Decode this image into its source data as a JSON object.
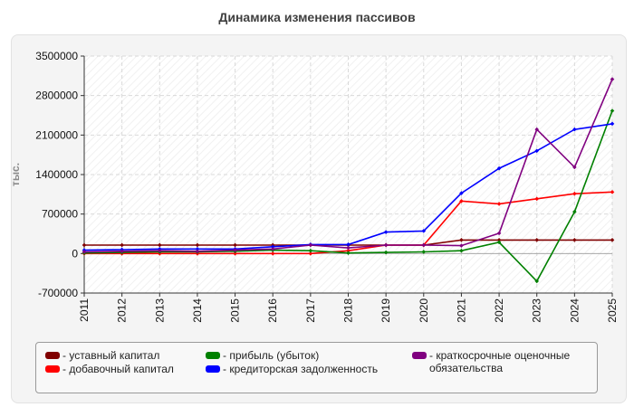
{
  "title": "Динамика изменения пассивов",
  "chart_data": {
    "type": "line",
    "ylabel": "тыс.",
    "ylim": [
      -700000,
      3500000
    ],
    "yticks": [
      -700000,
      0,
      700000,
      1400000,
      2100000,
      2800000,
      3500000
    ],
    "ytick_labels": [
      "-700000",
      "0",
      "700000",
      "1400000",
      "2100000",
      "2800000",
      "3500000"
    ],
    "x": [
      "2011",
      "2012",
      "2013",
      "2014",
      "2015",
      "2016",
      "2017",
      "2018",
      "2019",
      "2020",
      "2021",
      "2022",
      "2023",
      "2024",
      "2025"
    ],
    "grid": true,
    "legend_position": "bottom",
    "series": [
      {
        "name": "- уставный капитал",
        "color": "#800000",
        "values": [
          150000,
          150000,
          150000,
          150000,
          150000,
          150000,
          150000,
          150000,
          150000,
          150000,
          240000,
          240000,
          240000,
          240000,
          240000
        ]
      },
      {
        "name": "- добавочный капитал",
        "color": "#ff0000",
        "values": [
          0,
          0,
          0,
          0,
          0,
          0,
          0,
          50000,
          150000,
          150000,
          930000,
          880000,
          970000,
          1060000,
          1090000
        ]
      },
      {
        "name": "- прибыль (убыток)",
        "color": "#008000",
        "values": [
          10000,
          20000,
          30000,
          30000,
          40000,
          60000,
          50000,
          10000,
          20000,
          30000,
          50000,
          200000,
          -490000,
          740000,
          2530000
        ]
      },
      {
        "name": "- кредиторская задолженность",
        "color": "#0000ff",
        "values": [
          60000,
          70000,
          80000,
          80000,
          80000,
          120000,
          160000,
          160000,
          380000,
          400000,
          1070000,
          1510000,
          1820000,
          2200000,
          2300000
        ]
      },
      {
        "name": "- краткосрочные оценочные обязательства",
        "color": "#800080",
        "values": [
          30000,
          40000,
          50000,
          40000,
          60000,
          80000,
          150000,
          100000,
          150000,
          150000,
          140000,
          360000,
          2200000,
          1530000,
          3090000
        ]
      }
    ]
  },
  "legend_columns": [
    [
      0,
      1
    ],
    [
      2,
      3
    ],
    [
      4
    ]
  ]
}
